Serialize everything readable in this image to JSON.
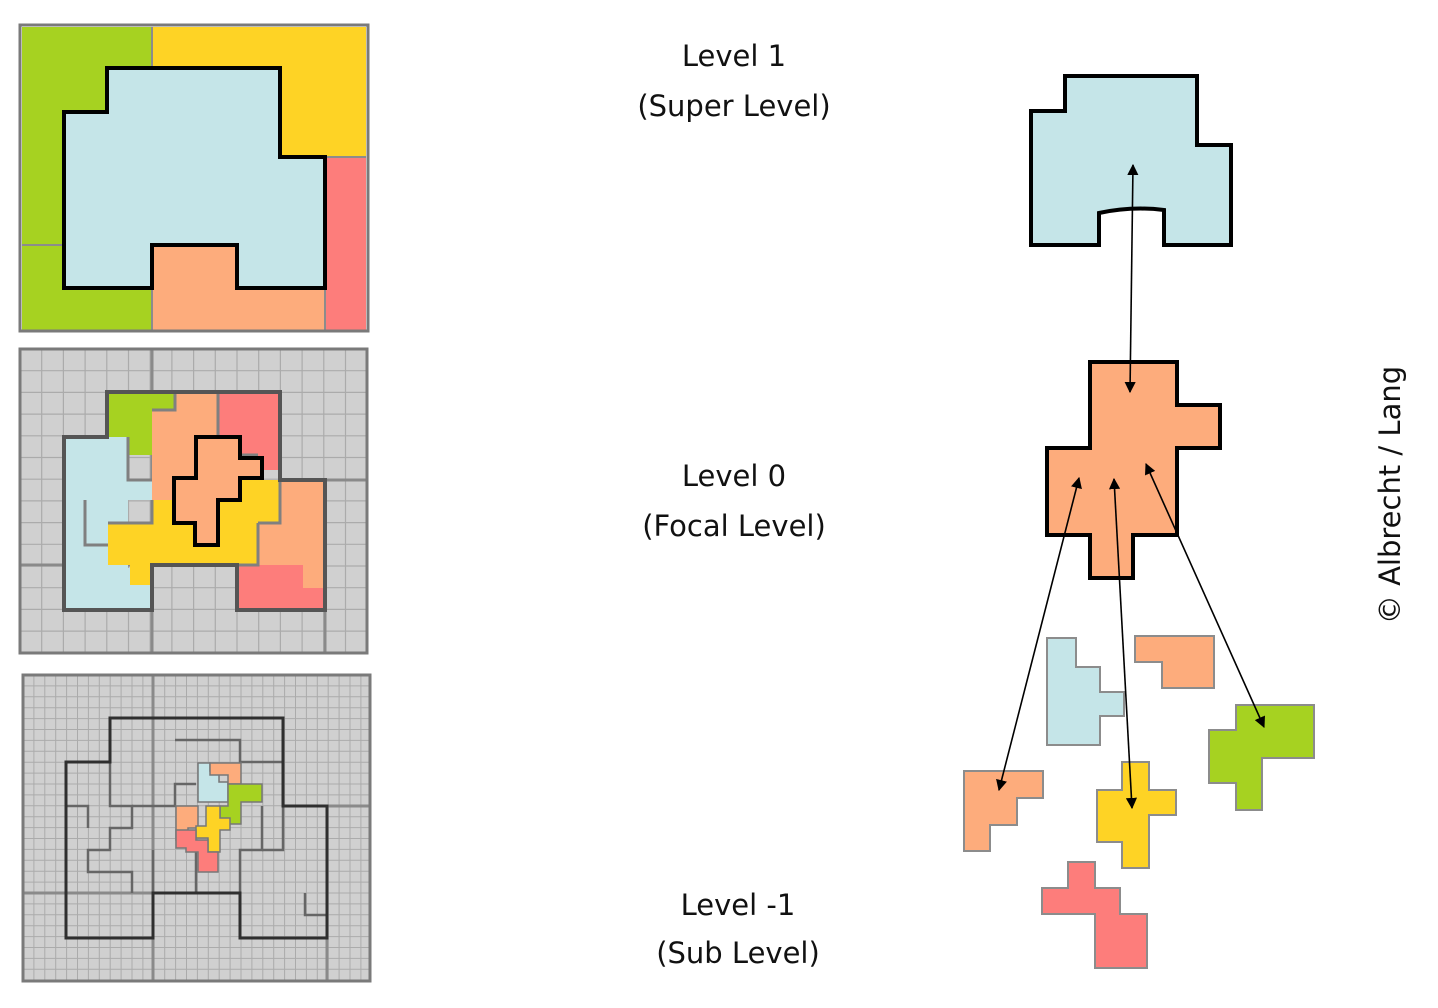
{
  "levels": [
    {
      "name": "Level 1",
      "desc": "(Super Level)"
    },
    {
      "name": "Level 0",
      "desc": "(Focal Level)"
    },
    {
      "name": "Level -1",
      "desc": "(Sub Level)"
    }
  ],
  "copyright": "© Albrecht / Lang",
  "colors": {
    "light_blue": "#c5e5e8",
    "orange": "#fdac7c",
    "green": "#a6d221",
    "yellow": "#fed325",
    "red": "#fd7d7b",
    "grey": "#d0d0d0",
    "grid": "#a8a8a8",
    "frame": "#7a7a7a",
    "outline": "#000000"
  }
}
